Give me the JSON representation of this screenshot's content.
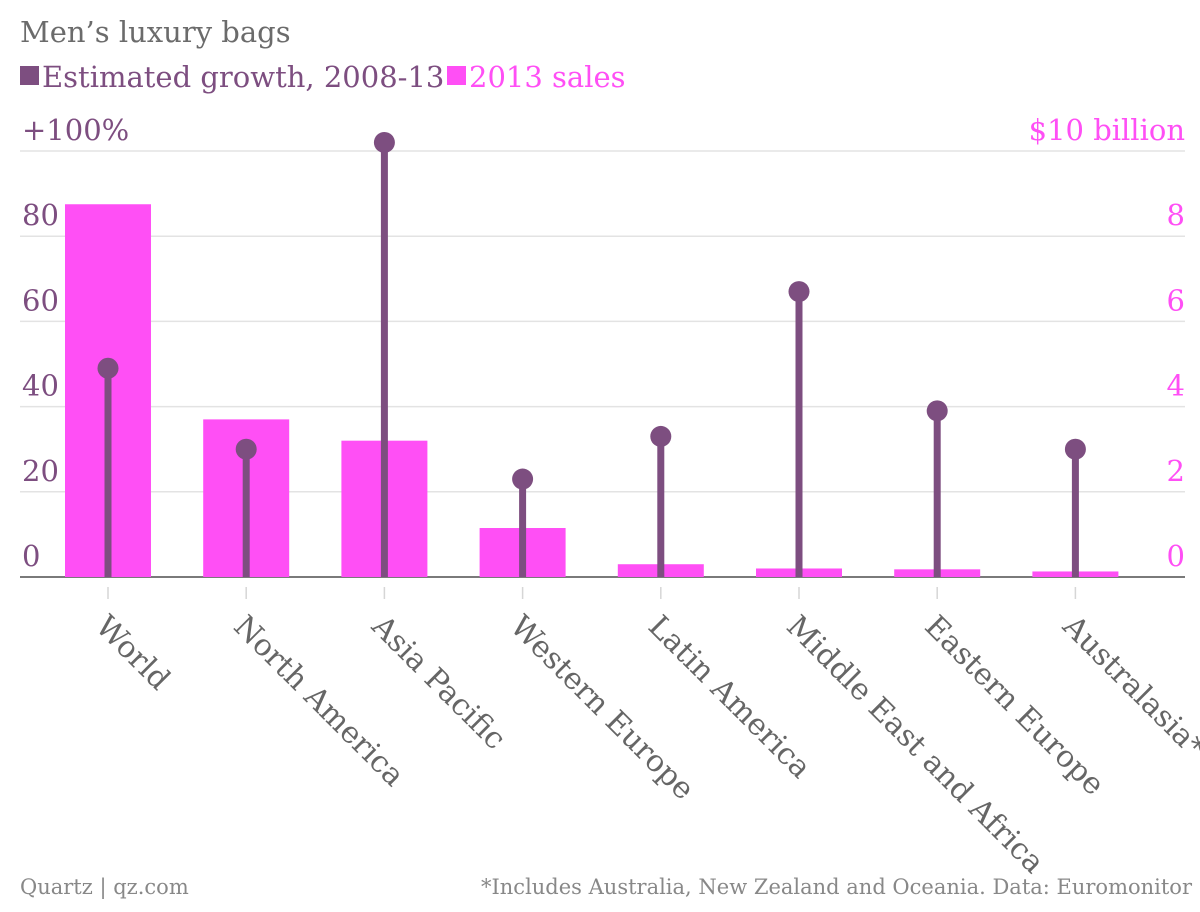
{
  "chart_data": {
    "type": "bar",
    "title": "Men’s luxury bags",
    "categories": [
      "World",
      "North America",
      "Asia Pacific",
      "Western Europe",
      "Latin America",
      "Middle East and Africa",
      "Eastern Europe",
      "Australasia*"
    ],
    "series": [
      {
        "name": "Estimated growth, 2008-13",
        "kind": "lollipop",
        "axis": "left",
        "color": "#7d4e80",
        "values": [
          49,
          30,
          102,
          23,
          33,
          67,
          39,
          30
        ]
      },
      {
        "name": "2013 sales",
        "kind": "bar",
        "axis": "right",
        "color": "#ff4ff5",
        "values": [
          8.75,
          3.7,
          3.2,
          1.15,
          0.3,
          0.2,
          0.18,
          0.13
        ]
      }
    ],
    "left_axis": {
      "ylim": [
        0,
        100
      ],
      "ticks": [
        0,
        20,
        40,
        60,
        80,
        100
      ],
      "tick_labels": [
        "0",
        "20",
        "40",
        "60",
        "80",
        "+100%"
      ],
      "color": "#7d4e80"
    },
    "right_axis": {
      "ylim": [
        0,
        10
      ],
      "ticks": [
        0,
        2,
        4,
        6,
        8,
        10
      ],
      "tick_labels": [
        "0",
        "2",
        "4",
        "6",
        "8",
        "$10 billion"
      ],
      "color": "#ff4ff5"
    },
    "grid": true,
    "legend_position": "top-left",
    "source": "Quartz | qz.com",
    "note": "*Includes Australia, New Zealand and Oceania. Data: Euromonitor"
  },
  "colors": {
    "title": "#6b6b6b",
    "footer": "#888888",
    "grid": "#e3e3e3",
    "baseline": "#7a7a7a",
    "category_label": "#666666"
  }
}
